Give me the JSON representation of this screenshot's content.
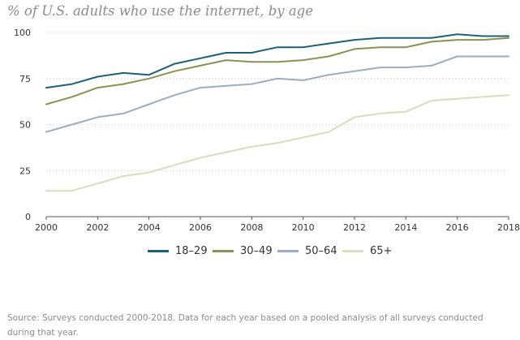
{
  "chart_data": {
    "type": "line",
    "title": "% of U.S. adults who use the internet, by age",
    "xlabel": "",
    "ylabel": "",
    "x": [
      2000,
      2001,
      2002,
      2003,
      2004,
      2005,
      2006,
      2007,
      2008,
      2009,
      2010,
      2011,
      2012,
      2013,
      2014,
      2015,
      2016,
      2017,
      2018
    ],
    "x_ticks": [
      "2000",
      "2002",
      "2004",
      "2006",
      "2008",
      "2010",
      "2012",
      "2014",
      "2016",
      "2018"
    ],
    "y_ticks": [
      "100",
      "75",
      "50",
      "25",
      "0"
    ],
    "xlim": [
      2000,
      2018
    ],
    "ylim": [
      0,
      100
    ],
    "grid": true,
    "legend_position": "bottom-center",
    "series": [
      {
        "name": "18-29",
        "color": "#1f5f7a",
        "values": [
          70,
          72,
          76,
          78,
          77,
          83,
          86,
          89,
          89,
          92,
          92,
          94,
          96,
          97,
          97,
          97,
          99,
          98,
          98
        ]
      },
      {
        "name": "30-49",
        "color": "#8c9151",
        "values": [
          61,
          65,
          70,
          72,
          75,
          79,
          82,
          85,
          84,
          84,
          85,
          87,
          91,
          92,
          92,
          95,
          96,
          96,
          97
        ]
      },
      {
        "name": "50-64",
        "color": "#9aaec3",
        "values": [
          46,
          50,
          54,
          56,
          61,
          66,
          70,
          71,
          72,
          75,
          74,
          77,
          79,
          81,
          81,
          82,
          87,
          87,
          87
        ]
      },
      {
        "name": "65+",
        "color": "#d8ddbb",
        "values": [
          14,
          14,
          18,
          22,
          24,
          28,
          32,
          35,
          38,
          40,
          43,
          46,
          54,
          56,
          57,
          63,
          64,
          65,
          66
        ]
      }
    ]
  },
  "legend": [
    {
      "label": "18–29"
    },
    {
      "label": "30–49"
    },
    {
      "label": "50–64"
    },
    {
      "label": "65+"
    }
  ],
  "source_note": "Source: Surveys conducted 2000-2018. Data for each year based on a pooled analysis of all surveys conducted during that year."
}
